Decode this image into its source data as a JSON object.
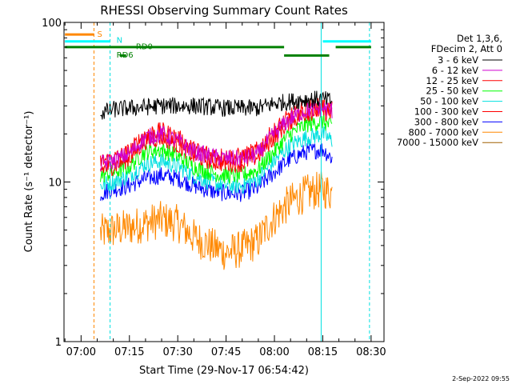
{
  "chart_data": {
    "type": "line",
    "title": "RHESSI Observing Summary Count Rates",
    "xlabel": "Start Time (29-Nov-17 06:54:42)",
    "ylabel": "Count Rate (s⁻¹ detector⁻¹)",
    "yscale": "log",
    "ylim": [
      1,
      100
    ],
    "ytick_labels": [
      "1",
      "10",
      "100"
    ],
    "xlim": [
      "06:54:42",
      "08:34:00"
    ],
    "xtick_labels": [
      "07:00",
      "07:15",
      "07:30",
      "07:45",
      "08:00",
      "08:15",
      "08:30"
    ],
    "timestamp": "2-Sep-2022 09:55",
    "legend": {
      "header": [
        "Det 1,3,6,",
        "FDecim 2, Att 0"
      ],
      "placement": "right"
    },
    "flag_labels": {
      "saa": "S",
      "night": "N",
      "rd0": "RD0",
      "rd6": "RD6"
    },
    "series": [
      {
        "name": "3 - 6 keV",
        "color": "#000000",
        "t": [
          "07:06",
          "07:10",
          "07:15",
          "07:20",
          "07:25",
          "07:30",
          "07:35",
          "07:40",
          "07:45",
          "07:50",
          "07:55",
          "08:00",
          "08:05",
          "08:10",
          "08:15",
          "08:18"
        ],
        "values": [
          27,
          28.5,
          29,
          29.5,
          30,
          30,
          30,
          29.5,
          29,
          29,
          29,
          31,
          32,
          33,
          33,
          32
        ]
      },
      {
        "name": "6 - 12 keV",
        "color": "#d000d0",
        "t": [
          "07:06",
          "07:10",
          "07:15",
          "07:20",
          "07:25",
          "07:30",
          "07:35",
          "07:40",
          "07:45",
          "07:50",
          "07:55",
          "08:00",
          "08:05",
          "08:10",
          "08:15",
          "08:18"
        ],
        "values": [
          13,
          13.5,
          15,
          19,
          20,
          18,
          15.5,
          14.5,
          14,
          14,
          15,
          20,
          25,
          28,
          29,
          28
        ]
      },
      {
        "name": "12 - 25 keV",
        "color": "#ff0000",
        "t": [
          "07:06",
          "07:10",
          "07:15",
          "07:20",
          "07:25",
          "07:30",
          "07:35",
          "07:40",
          "07:45",
          "07:50",
          "07:55",
          "08:00",
          "08:05",
          "08:10",
          "08:15",
          "08:18"
        ],
        "values": [
          13.5,
          14,
          15.5,
          20,
          21,
          19,
          16,
          15,
          14.5,
          14.5,
          16,
          21,
          26,
          29,
          30,
          28
        ]
      },
      {
        "name": "25 - 50 keV",
        "color": "#00ff00",
        "t": [
          "07:06",
          "07:10",
          "07:15",
          "07:20",
          "07:25",
          "07:30",
          "07:35",
          "07:40",
          "07:45",
          "07:50",
          "07:55",
          "08:00",
          "08:05",
          "08:10",
          "08:15",
          "08:18"
        ],
        "values": [
          11,
          11.5,
          12.5,
          15.5,
          16,
          14.5,
          12.5,
          11.5,
          11,
          11,
          12,
          15.5,
          20,
          23,
          24,
          22
        ]
      },
      {
        "name": "50 - 100 keV",
        "color": "#00e0e0",
        "t": [
          "07:06",
          "07:10",
          "07:15",
          "07:20",
          "07:25",
          "07:30",
          "07:35",
          "07:40",
          "07:45",
          "07:50",
          "07:55",
          "08:00",
          "08:05",
          "08:10",
          "08:15",
          "08:18"
        ],
        "values": [
          9.5,
          10,
          11,
          13,
          13.5,
          12.5,
          11,
          10,
          9.5,
          9.5,
          10.5,
          13.5,
          17,
          19,
          20,
          18
        ]
      },
      {
        "name": "100 - 300 keV",
        "color": "#ff0000",
        "t": [
          "07:06",
          "07:10",
          "07:15",
          "07:20",
          "07:25",
          "07:30",
          "07:35",
          "07:40",
          "07:45",
          "07:50",
          "07:55",
          "08:00",
          "08:05",
          "08:10",
          "08:15",
          "08:18"
        ],
        "values": [
          12,
          12.5,
          14,
          18,
          19,
          17,
          14.5,
          13.5,
          13,
          13,
          14.5,
          19,
          24,
          27,
          28,
          26
        ]
      },
      {
        "name": "300 - 800 keV",
        "color": "#0000ff",
        "t": [
          "07:06",
          "07:10",
          "07:15",
          "07:20",
          "07:25",
          "07:30",
          "07:35",
          "07:40",
          "07:45",
          "07:50",
          "07:55",
          "08:00",
          "08:05",
          "08:10",
          "08:15",
          "08:18"
        ],
        "values": [
          8.5,
          9,
          9.5,
          10.5,
          11,
          10.5,
          9.5,
          8.8,
          8.5,
          8.5,
          9.2,
          11.5,
          14,
          15.5,
          16,
          14
        ]
      },
      {
        "name": "800 - 7000 keV",
        "color": "#ff8800",
        "t": [
          "07:06",
          "07:10",
          "07:15",
          "07:20",
          "07:25",
          "07:30",
          "07:35",
          "07:40",
          "07:45",
          "07:50",
          "07:55",
          "08:00",
          "08:05",
          "08:10",
          "08:15",
          "08:18"
        ],
        "values": [
          4.8,
          5,
          5.2,
          5.5,
          5.8,
          5.5,
          4.5,
          4,
          3.6,
          3.8,
          4.3,
          6,
          7.5,
          8.5,
          9,
          8.5
        ]
      },
      {
        "name": "7000 - 15000 keV",
        "color": "#a06000",
        "t": [],
        "values": []
      }
    ],
    "vertical_lines": [
      {
        "t": "06:54:42",
        "color": "#00e0e0",
        "style": "solid"
      },
      {
        "t": "07:04:00",
        "color": "#ff8800",
        "style": "dashed"
      },
      {
        "t": "07:09:00",
        "color": "#00e0e0",
        "style": "dashed"
      },
      {
        "t": "08:14:30",
        "color": "#00e0e0",
        "style": "solid"
      },
      {
        "t": "08:29:30",
        "color": "#00e0e0",
        "style": "dashed"
      }
    ],
    "flag_bars": [
      {
        "label": "saa",
        "color": "#ff8800",
        "y": 84,
        "t0": "06:55",
        "t1": "07:04"
      },
      {
        "label": "night",
        "color": "#00ffff",
        "y": 76,
        "t0": "06:55",
        "t1": "07:09"
      },
      {
        "label": "night",
        "color": "#00ffff",
        "y": 76,
        "t0": "08:15",
        "t1": "08:30"
      },
      {
        "label": "rd0",
        "color": "#008000",
        "y": 70,
        "t0": "06:55",
        "t1": "08:03"
      },
      {
        "label": "rd0",
        "color": "#008000",
        "y": 70,
        "t0": "08:19",
        "t1": "08:30"
      },
      {
        "label": "rd6",
        "color": "#008000",
        "y": 62,
        "t0": "07:12",
        "t1": "07:14"
      },
      {
        "label": "rd6",
        "color": "#008000",
        "y": 62,
        "t0": "08:03",
        "t1": "08:17"
      }
    ]
  }
}
